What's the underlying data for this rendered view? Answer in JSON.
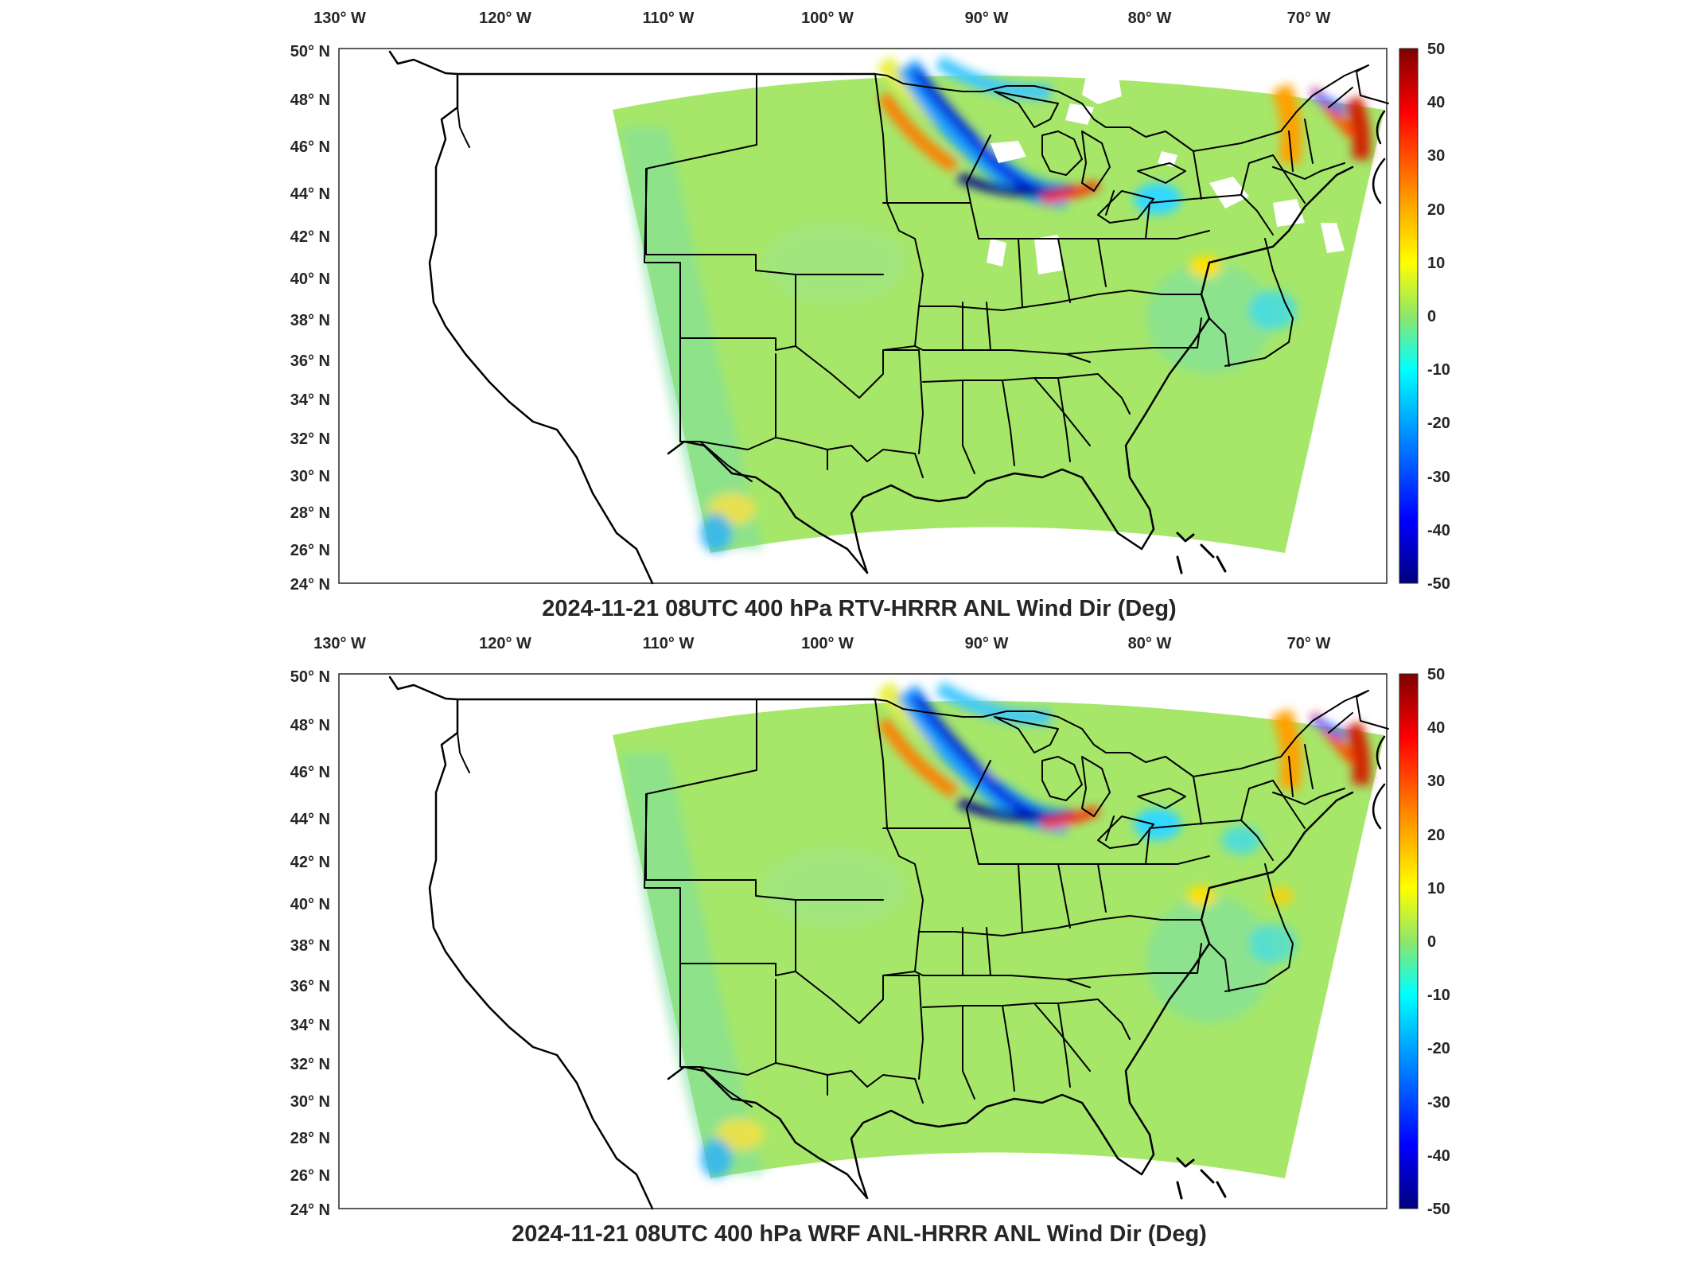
{
  "panels": [
    {
      "title": "2024-11-21 08UTC 400 hPa RTV-HRRR ANL Wind Dir (Deg)",
      "has_missing_patches": true
    },
    {
      "title": "2024-11-21 08UTC 400 hPa WRF ANL-HRRR ANL Wind Dir (Deg)",
      "has_missing_patches": false
    }
  ],
  "lon_labels": [
    "130° W",
    "120° W",
    "110° W",
    "100° W",
    "90° W",
    "80° W",
    "70° W"
  ],
  "lat_labels": [
    "50° N",
    "48° N",
    "46° N",
    "44° N",
    "42° N",
    "40° N",
    "38° N",
    "36° N",
    "34° N",
    "32° N",
    "30° N",
    "28° N",
    "26° N",
    "24° N"
  ],
  "colorbar": {
    "ticks": [
      "50",
      "40",
      "30",
      "20",
      "10",
      "0",
      "-10",
      "-20",
      "-30",
      "-40",
      "-50"
    ],
    "colors": [
      "#7f0000",
      "#d40000",
      "#ff3a00",
      "#ff9a00",
      "#ffe800",
      "#8ee66a",
      "#18e4ee",
      "#0090ff",
      "#0028ff",
      "#0000c0",
      "#00007f"
    ]
  },
  "colormap": "jet",
  "map_region": "CONUS"
}
